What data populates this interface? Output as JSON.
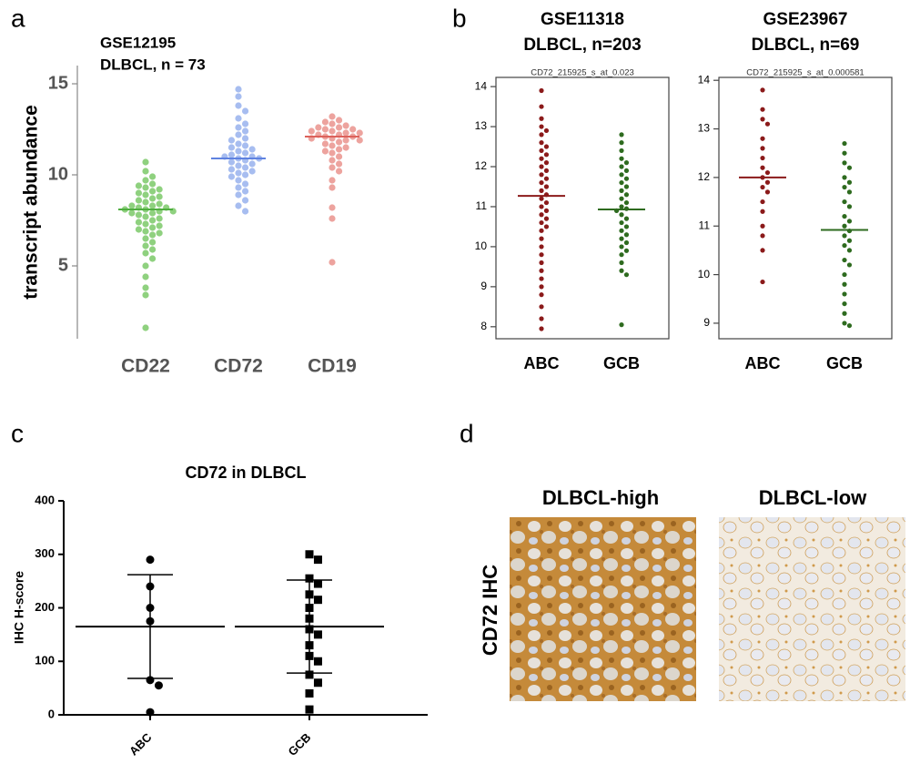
{
  "chart_data": [
    {
      "type": "strip",
      "panel_label": "a",
      "title": [
        "GSE12195",
        "DLBCL, n = 73"
      ],
      "y_label": "transcript abundance",
      "categories": [
        "CD22",
        "CD72",
        "CD19"
      ],
      "groups": [
        {
          "color": "#8fd17f",
          "line_color": "#4fae3f",
          "center": 8.1,
          "values": [
            10.7,
            10.2,
            9.9,
            9.7,
            9.5,
            9.4,
            9.3,
            9.2,
            9.1,
            9.0,
            8.9,
            8.8,
            8.7,
            8.6,
            8.5,
            8.4,
            8.3,
            8.3,
            8.2,
            8.2,
            8.1,
            8.1,
            8.0,
            8.0,
            7.9,
            7.9,
            7.8,
            7.7,
            7.6,
            7.5,
            7.4,
            7.3,
            7.2,
            7.1,
            7.0,
            6.9,
            6.8,
            6.7,
            6.5,
            6.3,
            6.1,
            5.9,
            5.7,
            5.4,
            5.0,
            4.4,
            3.8,
            3.4,
            1.6
          ]
        },
        {
          "color": "#a7bdf0",
          "line_color": "#5f82e0",
          "center": 10.9,
          "values": [
            14.7,
            14.3,
            13.8,
            13.5,
            13.1,
            12.8,
            12.6,
            12.4,
            12.2,
            12.0,
            11.9,
            11.7,
            11.6,
            11.5,
            11.4,
            11.3,
            11.2,
            11.1,
            11.0,
            11.0,
            10.9,
            10.9,
            10.8,
            10.7,
            10.6,
            10.5,
            10.4,
            10.3,
            10.2,
            10.1,
            10.0,
            9.9,
            9.7,
            9.5,
            9.3,
            9.1,
            8.9,
            8.6,
            8.3,
            8.0
          ]
        },
        {
          "color": "#eda39e",
          "line_color": "#dc625b",
          "center": 12.1,
          "values": [
            13.2,
            13.0,
            12.9,
            12.8,
            12.7,
            12.6,
            12.6,
            12.5,
            12.5,
            12.4,
            12.4,
            12.3,
            12.3,
            12.2,
            12.2,
            12.1,
            12.1,
            12.0,
            12.0,
            11.9,
            11.9,
            11.8,
            11.7,
            11.6,
            11.5,
            11.4,
            11.3,
            11.2,
            11.0,
            10.8,
            10.6,
            10.4,
            10.2,
            9.7,
            9.3,
            8.2,
            7.6,
            5.2
          ]
        }
      ],
      "ylim": [
        1,
        16
      ],
      "yticks": [
        5,
        10,
        15
      ]
    },
    {
      "type": "strip",
      "panel_label": "b",
      "title": [
        "GSE11318",
        "DLBCL, n=203"
      ],
      "subtitle": "CD72_215925_s_at_0.023",
      "categories": [
        "ABC",
        "GCB"
      ],
      "groups": [
        {
          "color": "#8b1a1a",
          "line_color": "#8b1a1a",
          "center": 11.27,
          "values": [
            13.9,
            13.5,
            13.2,
            13.0,
            12.9,
            12.8,
            12.6,
            12.5,
            12.4,
            12.3,
            12.2,
            12.1,
            12.0,
            11.9,
            11.8,
            11.7,
            11.6,
            11.5,
            11.4,
            11.3,
            11.2,
            11.1,
            11.0,
            10.9,
            10.8,
            10.7,
            10.6,
            10.5,
            10.4,
            10.2,
            10.0,
            9.8,
            9.6,
            9.4,
            9.2,
            9.0,
            8.8,
            8.5,
            8.2,
            7.95
          ]
        },
        {
          "color": "#2e6b1f",
          "line_color": "#2e6b1f",
          "center": 10.93,
          "values": [
            12.8,
            12.6,
            12.4,
            12.2,
            12.1,
            12.0,
            11.9,
            11.8,
            11.7,
            11.6,
            11.5,
            11.4,
            11.3,
            11.2,
            11.1,
            11.0,
            10.95,
            10.9,
            10.8,
            10.7,
            10.6,
            10.5,
            10.4,
            10.3,
            10.2,
            10.1,
            10.0,
            9.9,
            9.8,
            9.6,
            9.4,
            9.3,
            8.05
          ]
        }
      ],
      "ylim": [
        7.7,
        14.23
      ],
      "yticks": [
        8,
        9,
        10,
        11,
        12,
        13,
        14
      ]
    },
    {
      "type": "strip",
      "title": [
        "GSE23967",
        "DLBCL, n=69"
      ],
      "subtitle": "CD72_215925_s_at_0.000581",
      "categories": [
        "ABC",
        "GCB"
      ],
      "groups": [
        {
          "color": "#8b1a1a",
          "line_color": "#8b1a1a",
          "center": 12.0,
          "values": [
            13.8,
            13.4,
            13.2,
            13.1,
            12.8,
            12.6,
            12.4,
            12.2,
            12.1,
            12.0,
            11.9,
            11.8,
            11.7,
            11.5,
            11.3,
            11.0,
            10.8,
            10.5,
            9.85
          ]
        },
        {
          "color": "#2e6b1f",
          "line_color": "#2e6b1f",
          "center": 10.92,
          "values": [
            12.7,
            12.5,
            12.3,
            12.2,
            12.0,
            11.9,
            11.8,
            11.7,
            11.5,
            11.4,
            11.2,
            11.1,
            11.0,
            10.9,
            10.8,
            10.7,
            10.6,
            10.5,
            10.3,
            10.2,
            10.0,
            9.8,
            9.6,
            9.4,
            9.2,
            9.0,
            8.95
          ]
        }
      ],
      "ylim": [
        8.68,
        14.06
      ],
      "yticks": [
        9,
        10,
        11,
        12,
        13,
        14
      ]
    },
    {
      "type": "strip",
      "panel_label": "c",
      "title": [
        "CD72 in DLBCL"
      ],
      "y_label": "IHC H-score",
      "categories": [
        "ABC",
        "GCB"
      ],
      "groups": [
        {
          "color": "#000000",
          "line_color": "#000000",
          "marker": "circle",
          "center": 165,
          "whisker": [
            68,
            262
          ],
          "values": [
            290,
            240,
            200,
            175,
            65,
            55,
            5
          ]
        },
        {
          "color": "#000000",
          "line_color": "#000000",
          "marker": "square",
          "center": 165,
          "whisker": [
            78,
            252
          ],
          "values": [
            300,
            290,
            255,
            245,
            225,
            215,
            200,
            180,
            160,
            150,
            130,
            110,
            100,
            75,
            60,
            40,
            10
          ]
        }
      ],
      "ylim": [
        0,
        400
      ],
      "yticks": [
        0,
        100,
        200,
        300,
        400
      ]
    }
  ],
  "image_panel": {
    "panel_label": "d",
    "y_label": "CD72 IHC",
    "images": [
      {
        "title": "DLBCL-high"
      },
      {
        "title": "DLBCL-low"
      }
    ]
  }
}
